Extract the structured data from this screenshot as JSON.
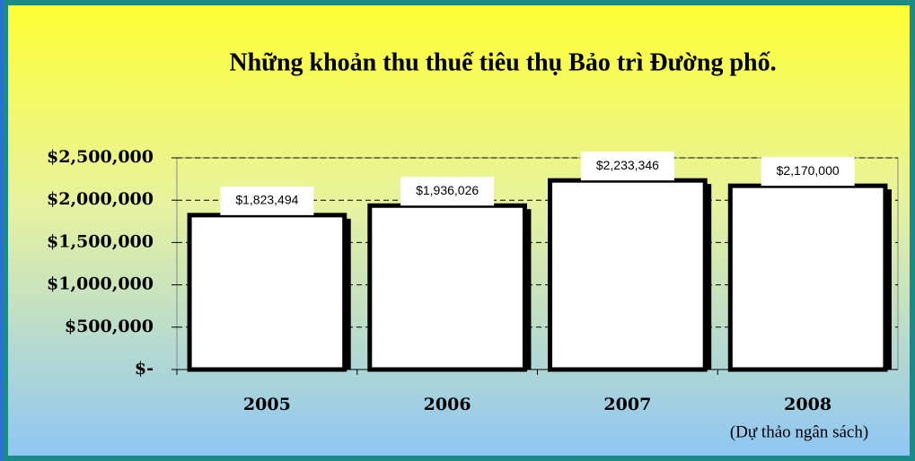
{
  "chart_data": {
    "type": "bar",
    "title": "Những khoản thu thuế tiêu thụ Bảo trì Đường phố.",
    "categories": [
      "2005",
      "2006",
      "2007",
      "2008"
    ],
    "annotation": "(Dự thảo ngân sách)",
    "values": [
      1823494,
      1936026,
      2233346,
      2170000
    ],
    "value_labels": [
      "$1,823,494",
      "$1,936,026",
      "$2,233,346",
      "$2,170,000"
    ],
    "color": "#ffffff",
    "ylim": [
      0,
      2500000
    ],
    "yticks": [
      {
        "value": 0,
        "label": "$-"
      },
      {
        "value": 500000,
        "label": "$500,000"
      },
      {
        "value": 1000000,
        "label": "$1,000,000"
      },
      {
        "value": 1500000,
        "label": "$1,500,000"
      },
      {
        "value": 2000000,
        "label": "$2,000,000"
      },
      {
        "value": 2500000,
        "label": "$2,500,000"
      }
    ],
    "grid": true
  }
}
